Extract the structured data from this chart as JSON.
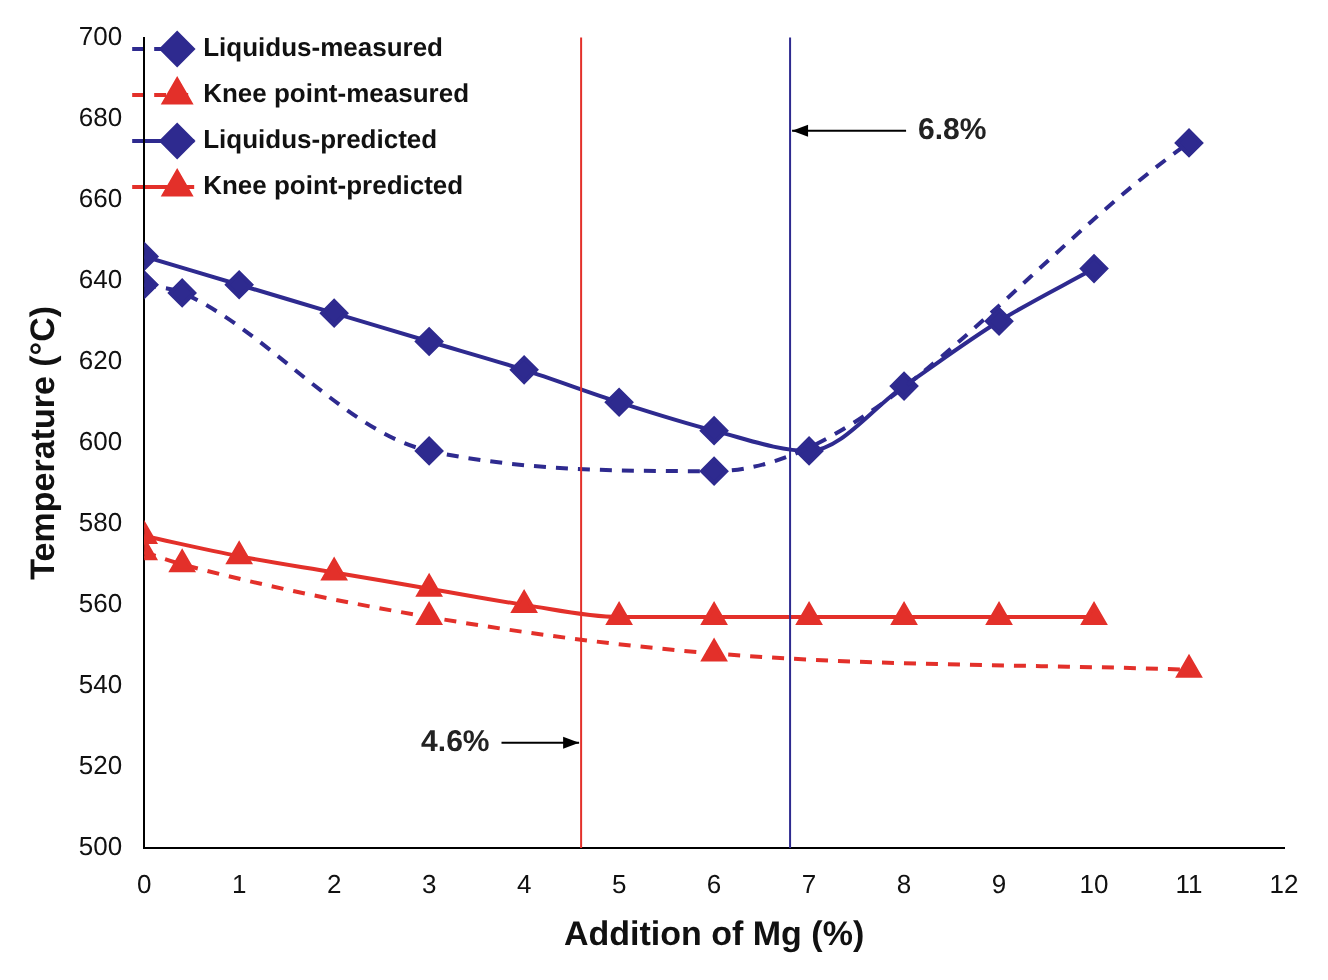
{
  "chart_data": {
    "type": "line",
    "xlabel": "Addition of Mg (%)",
    "ylabel": "Temperature (°C)",
    "xlim": [
      0,
      12
    ],
    "xticks": [
      0,
      1,
      2,
      3,
      4,
      5,
      6,
      7,
      8,
      9,
      10,
      11,
      12
    ],
    "ylim": [
      500,
      700
    ],
    "yticks": [
      500,
      520,
      540,
      560,
      580,
      600,
      620,
      640,
      660,
      680,
      700
    ],
    "grid": false,
    "legend": "top left",
    "series": [
      {
        "name": "Liquidus-measured",
        "color": "#2e2a8f",
        "line_style": "dashed",
        "marker": "diamond",
        "x": [
          0,
          0.4,
          3,
          6,
          11
        ],
        "values": [
          639,
          637,
          598,
          593,
          674
        ]
      },
      {
        "name": "Knee point-measured",
        "color": "#e3302a",
        "line_style": "dashed",
        "marker": "triangle",
        "x": [
          0,
          0.4,
          3,
          6,
          11
        ],
        "values": [
          573,
          570,
          557,
          548,
          544
        ]
      },
      {
        "name": "Liquidus-predicted",
        "color": "#2e2a8f",
        "line_style": "solid",
        "marker": "diamond",
        "x": [
          0,
          1,
          2,
          3,
          4,
          5,
          6,
          7,
          8,
          9,
          10
        ],
        "values": [
          646,
          639,
          632,
          625,
          618,
          610,
          603,
          598,
          614,
          630,
          643
        ]
      },
      {
        "name": "Knee point-predicted",
        "color": "#e3302a",
        "line_style": "solid",
        "marker": "triangle",
        "x": [
          0,
          1,
          2,
          3,
          4,
          5,
          6,
          7,
          8,
          9,
          10
        ],
        "values": [
          577,
          572,
          568,
          564,
          560,
          557,
          557,
          557,
          557,
          557,
          557
        ]
      }
    ],
    "ref_lines": [
      {
        "axis": "x",
        "value": 4.6,
        "label": "4.6%",
        "color": "#e3302a"
      },
      {
        "axis": "x",
        "value": 6.8,
        "label": "6.8%",
        "color": "#2e2a8f"
      }
    ]
  }
}
